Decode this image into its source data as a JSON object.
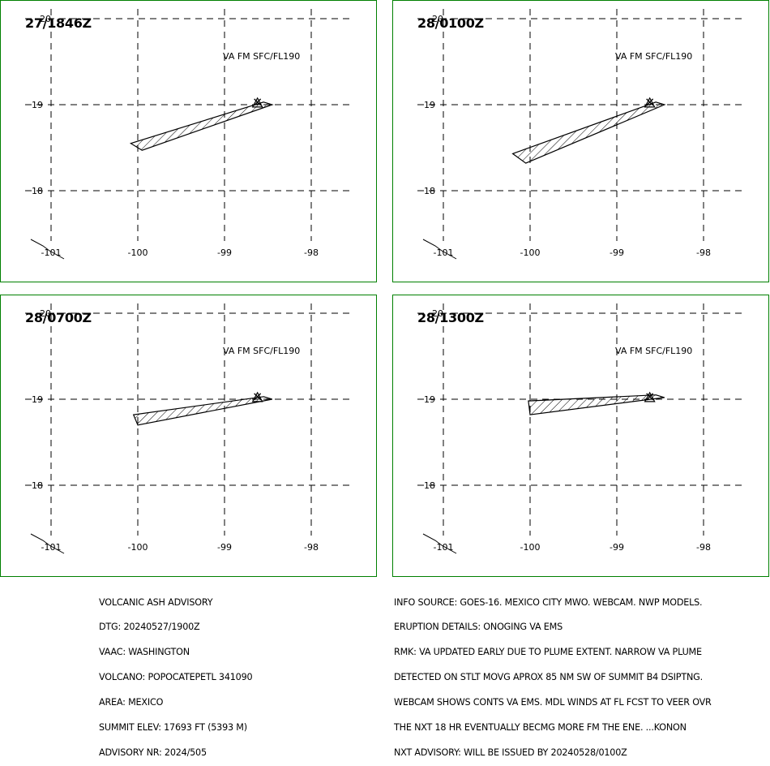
{
  "panels": [
    {
      "title": "27/1846Z",
      "level": "VA FM SFC/FL190",
      "plume": [
        [
          -98.55,
          19.03
        ],
        [
          -98.45,
          19.0
        ],
        [
          -99.95,
          18.47
        ],
        [
          -100.08,
          18.55
        ]
      ]
    },
    {
      "title": "28/0100Z",
      "level": "VA FM SFC/FL190",
      "plume": [
        [
          -98.55,
          19.03
        ],
        [
          -98.45,
          19.0
        ],
        [
          -100.05,
          18.32
        ],
        [
          -100.2,
          18.43
        ]
      ]
    },
    {
      "title": "28/0700Z",
      "level": "VA FM SFC/FL190",
      "plume": [
        [
          -98.55,
          19.03
        ],
        [
          -98.45,
          19.0
        ],
        [
          -100.0,
          18.7
        ],
        [
          -100.05,
          18.82
        ]
      ]
    },
    {
      "title": "28/1300Z",
      "level": "VA FM SFC/FL190",
      "plume": [
        [
          -98.55,
          19.05
        ],
        [
          -98.45,
          19.02
        ],
        [
          -100.0,
          18.82
        ],
        [
          -100.02,
          18.98
        ]
      ]
    }
  ],
  "map": {
    "x_ticks": [
      "-101",
      "-100",
      "-99",
      "-98"
    ],
    "y_ticks": [
      "20",
      "19",
      "18"
    ],
    "volcano": {
      "lon": -98.62,
      "lat": 19.02
    },
    "colors": {
      "border": "#008000",
      "grid": "#000000",
      "plume": "#000000"
    }
  },
  "advisory_left": [
    "VOLCANIC ASH ADVISORY",
    "DTG: 20240527/1900Z",
    "VAAC: WASHINGTON",
    "VOLCANO: POPOCATEPETL 341090",
    "AREA: MEXICO",
    "SUMMIT ELEV: 17693 FT (5393 M)",
    "ADVISORY NR: 2024/505"
  ],
  "advisory_right": [
    "INFO SOURCE: GOES-16. MEXICO CITY MWO. WEBCAM. NWP MODELS.",
    "ERUPTION DETAILS: ONOGING VA EMS",
    "RMK: VA UPDATED EARLY DUE TO PLUME EXTENT. NARROW VA PLUME",
    "DETECTED ON STLT MOVG APROX 85 NM SW OF SUMMIT B4 DSIPTNG.",
    "WEBCAM SHOWS CONTS VA EMS. MDL WINDS AT FL FCST TO VEER OVR",
    "THE NXT 18 HR EVENTUALLY BECMG MORE FM THE ENE. ...KONON",
    "NXT ADVISORY: WILL BE ISSUED BY 20240528/0100Z"
  ]
}
